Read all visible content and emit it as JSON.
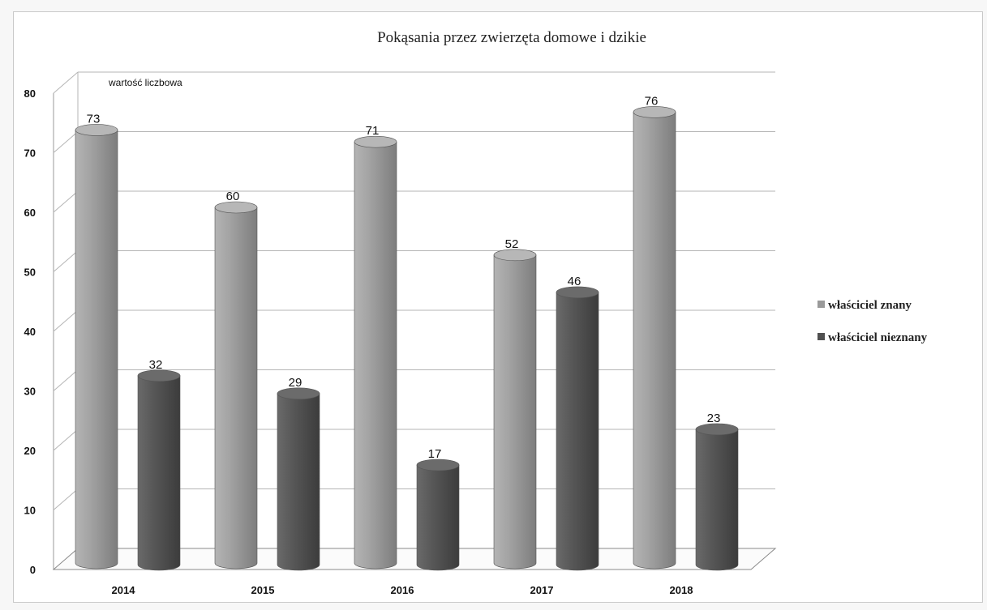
{
  "chart_data": {
    "type": "bar",
    "title": "Pokąsania przez zwierzęta domowe i dzikie",
    "ylabel": "wartość liczbowa",
    "xlabel": "",
    "categories": [
      "2014",
      "2015",
      "2016",
      "2017",
      "2018"
    ],
    "series": [
      {
        "name": "właściciel znany",
        "values": [
          73,
          60,
          71,
          52,
          76
        ],
        "color": "#9a9a9a"
      },
      {
        "name": "właściciel nieznany",
        "values": [
          32,
          29,
          17,
          46,
          23
        ],
        "color": "#505050"
      }
    ],
    "ylim": [
      0,
      80
    ],
    "yticks": [
      0,
      10,
      20,
      30,
      40,
      50,
      60,
      70,
      80
    ],
    "grid": true,
    "legend": "right",
    "style": "3d-cylinder"
  }
}
